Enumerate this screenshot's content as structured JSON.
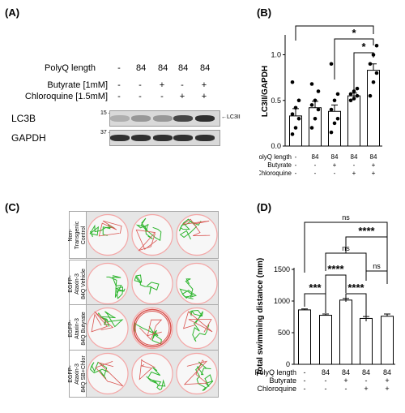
{
  "panels": {
    "a": {
      "label": "(A)"
    },
    "b": {
      "label": "(B)"
    },
    "c": {
      "label": "(C)"
    },
    "d": {
      "label": "(D)"
    }
  },
  "western": {
    "rows": [
      {
        "label": "PolyQ length",
        "values": [
          "-",
          "84",
          "84",
          "84",
          "84"
        ]
      },
      {
        "label": "Butyrate [1mM]",
        "values": [
          "-",
          "-",
          "+",
          "-",
          "+"
        ]
      },
      {
        "label": "Chloroquine [1.5mM]",
        "values": [
          "-",
          "-",
          "-",
          "+",
          "+"
        ]
      }
    ],
    "blots": [
      {
        "name": "LC3B",
        "marker": "15",
        "arrow_label": "←LC3II",
        "intensity": [
          0.35,
          0.45,
          0.45,
          0.8,
          0.9
        ]
      },
      {
        "name": "GAPDH",
        "marker": "37",
        "arrow_label": "",
        "intensity": [
          0.9,
          0.9,
          0.9,
          0.9,
          0.9
        ]
      }
    ]
  },
  "panel_b_table": [
    {
      "label": "PolyQ length",
      "values": [
        "-",
        "84",
        "84",
        "84",
        "84"
      ]
    },
    {
      "label": "Butyrate",
      "values": [
        "-",
        "-",
        "+",
        "-",
        "+"
      ]
    },
    {
      "label": "Chloroquine",
      "values": [
        "-",
        "-",
        "-",
        "+",
        "+"
      ]
    }
  ],
  "panel_c": {
    "conditions": [
      {
        "label_lines": [
          "Non-",
          "Transgenic",
          "Control"
        ]
      },
      {
        "label_lines": [
          "EGFP-",
          "Ataxin-3",
          "84Q Vehicle"
        ]
      },
      {
        "label_lines": [
          "EGFP-",
          "Ataxin-3",
          "84Q Butyrate"
        ]
      },
      {
        "label_lines": [
          "EGFP-",
          "Ataxin-3",
          "84Q SB+Chlor"
        ]
      }
    ]
  },
  "panel_d_table": [
    {
      "label": "PolyQ length",
      "values": [
        "-",
        "84",
        "84",
        "84",
        "84"
      ]
    },
    {
      "label": "Butyrate",
      "values": [
        "-",
        "-",
        "+",
        "-",
        "+"
      ]
    },
    {
      "label": "Chloroquine",
      "values": [
        "-",
        "-",
        "-",
        "+",
        "+"
      ]
    }
  ],
  "colors": {
    "bar_edge": "#000000",
    "scatter": "#000000",
    "track_green": "#2db52d",
    "track_red": "#d9534f",
    "well_ring": "#f4a6a6"
  },
  "chart_data": [
    {
      "type": "bar",
      "panel": "B",
      "ylabel": "LC3II/GAPDH",
      "ylim": [
        0,
        1.2
      ],
      "yticks": [
        "0.0",
        "0.5",
        "1.0"
      ],
      "ytick_values": [
        0,
        0.5,
        1.0
      ],
      "values": [
        0.33,
        0.42,
        0.38,
        0.55,
        0.83
      ],
      "errors": [
        0.08,
        0.07,
        0.07,
        0.03,
        0.07
      ],
      "points": [
        [
          0.13,
          0.2,
          0.3,
          0.35,
          0.42,
          0.5,
          0.7
        ],
        [
          0.2,
          0.3,
          0.4,
          0.45,
          0.5,
          0.6,
          0.68
        ],
        [
          0.15,
          0.25,
          0.3,
          0.4,
          0.5,
          0.57,
          0.9
        ],
        [
          0.5,
          0.52,
          0.55,
          0.57,
          0.6,
          0.63
        ],
        [
          0.55,
          0.7,
          0.8,
          0.9,
          1.0,
          1.1
        ]
      ],
      "significance": [
        {
          "from": 0,
          "to": 4,
          "label": "*"
        },
        {
          "from": 2,
          "to": 4,
          "label": "*"
        },
        {
          "from": 3,
          "to": 4,
          "label": "*"
        }
      ],
      "grid": false
    },
    {
      "type": "bar",
      "panel": "D",
      "ylabel": "Total swimming distance (mm)",
      "ylim": [
        0,
        1500
      ],
      "yticks": [
        "0",
        "500",
        "1000",
        "1500"
      ],
      "ytick_values": [
        0,
        500,
        1000,
        1500
      ],
      "values": [
        860,
        775,
        1015,
        725,
        760
      ],
      "errors": [
        15,
        20,
        25,
        30,
        35
      ],
      "significance": [
        {
          "from": 0,
          "to": 1,
          "label": "***"
        },
        {
          "from": 1,
          "to": 2,
          "label": "****"
        },
        {
          "from": 2,
          "to": 3,
          "label": "****"
        },
        {
          "from": 1,
          "to": 4,
          "label": "ns"
        },
        {
          "from": 2,
          "to": 3,
          "label": "ns",
          "over": 4
        },
        {
          "from": 3,
          "to": 4,
          "label": "ns"
        },
        {
          "from": 1,
          "to": 4,
          "label": "****",
          "level": 2
        },
        {
          "from": 0,
          "to": 4,
          "label": "ns",
          "level": 3
        }
      ],
      "grid": false
    }
  ]
}
